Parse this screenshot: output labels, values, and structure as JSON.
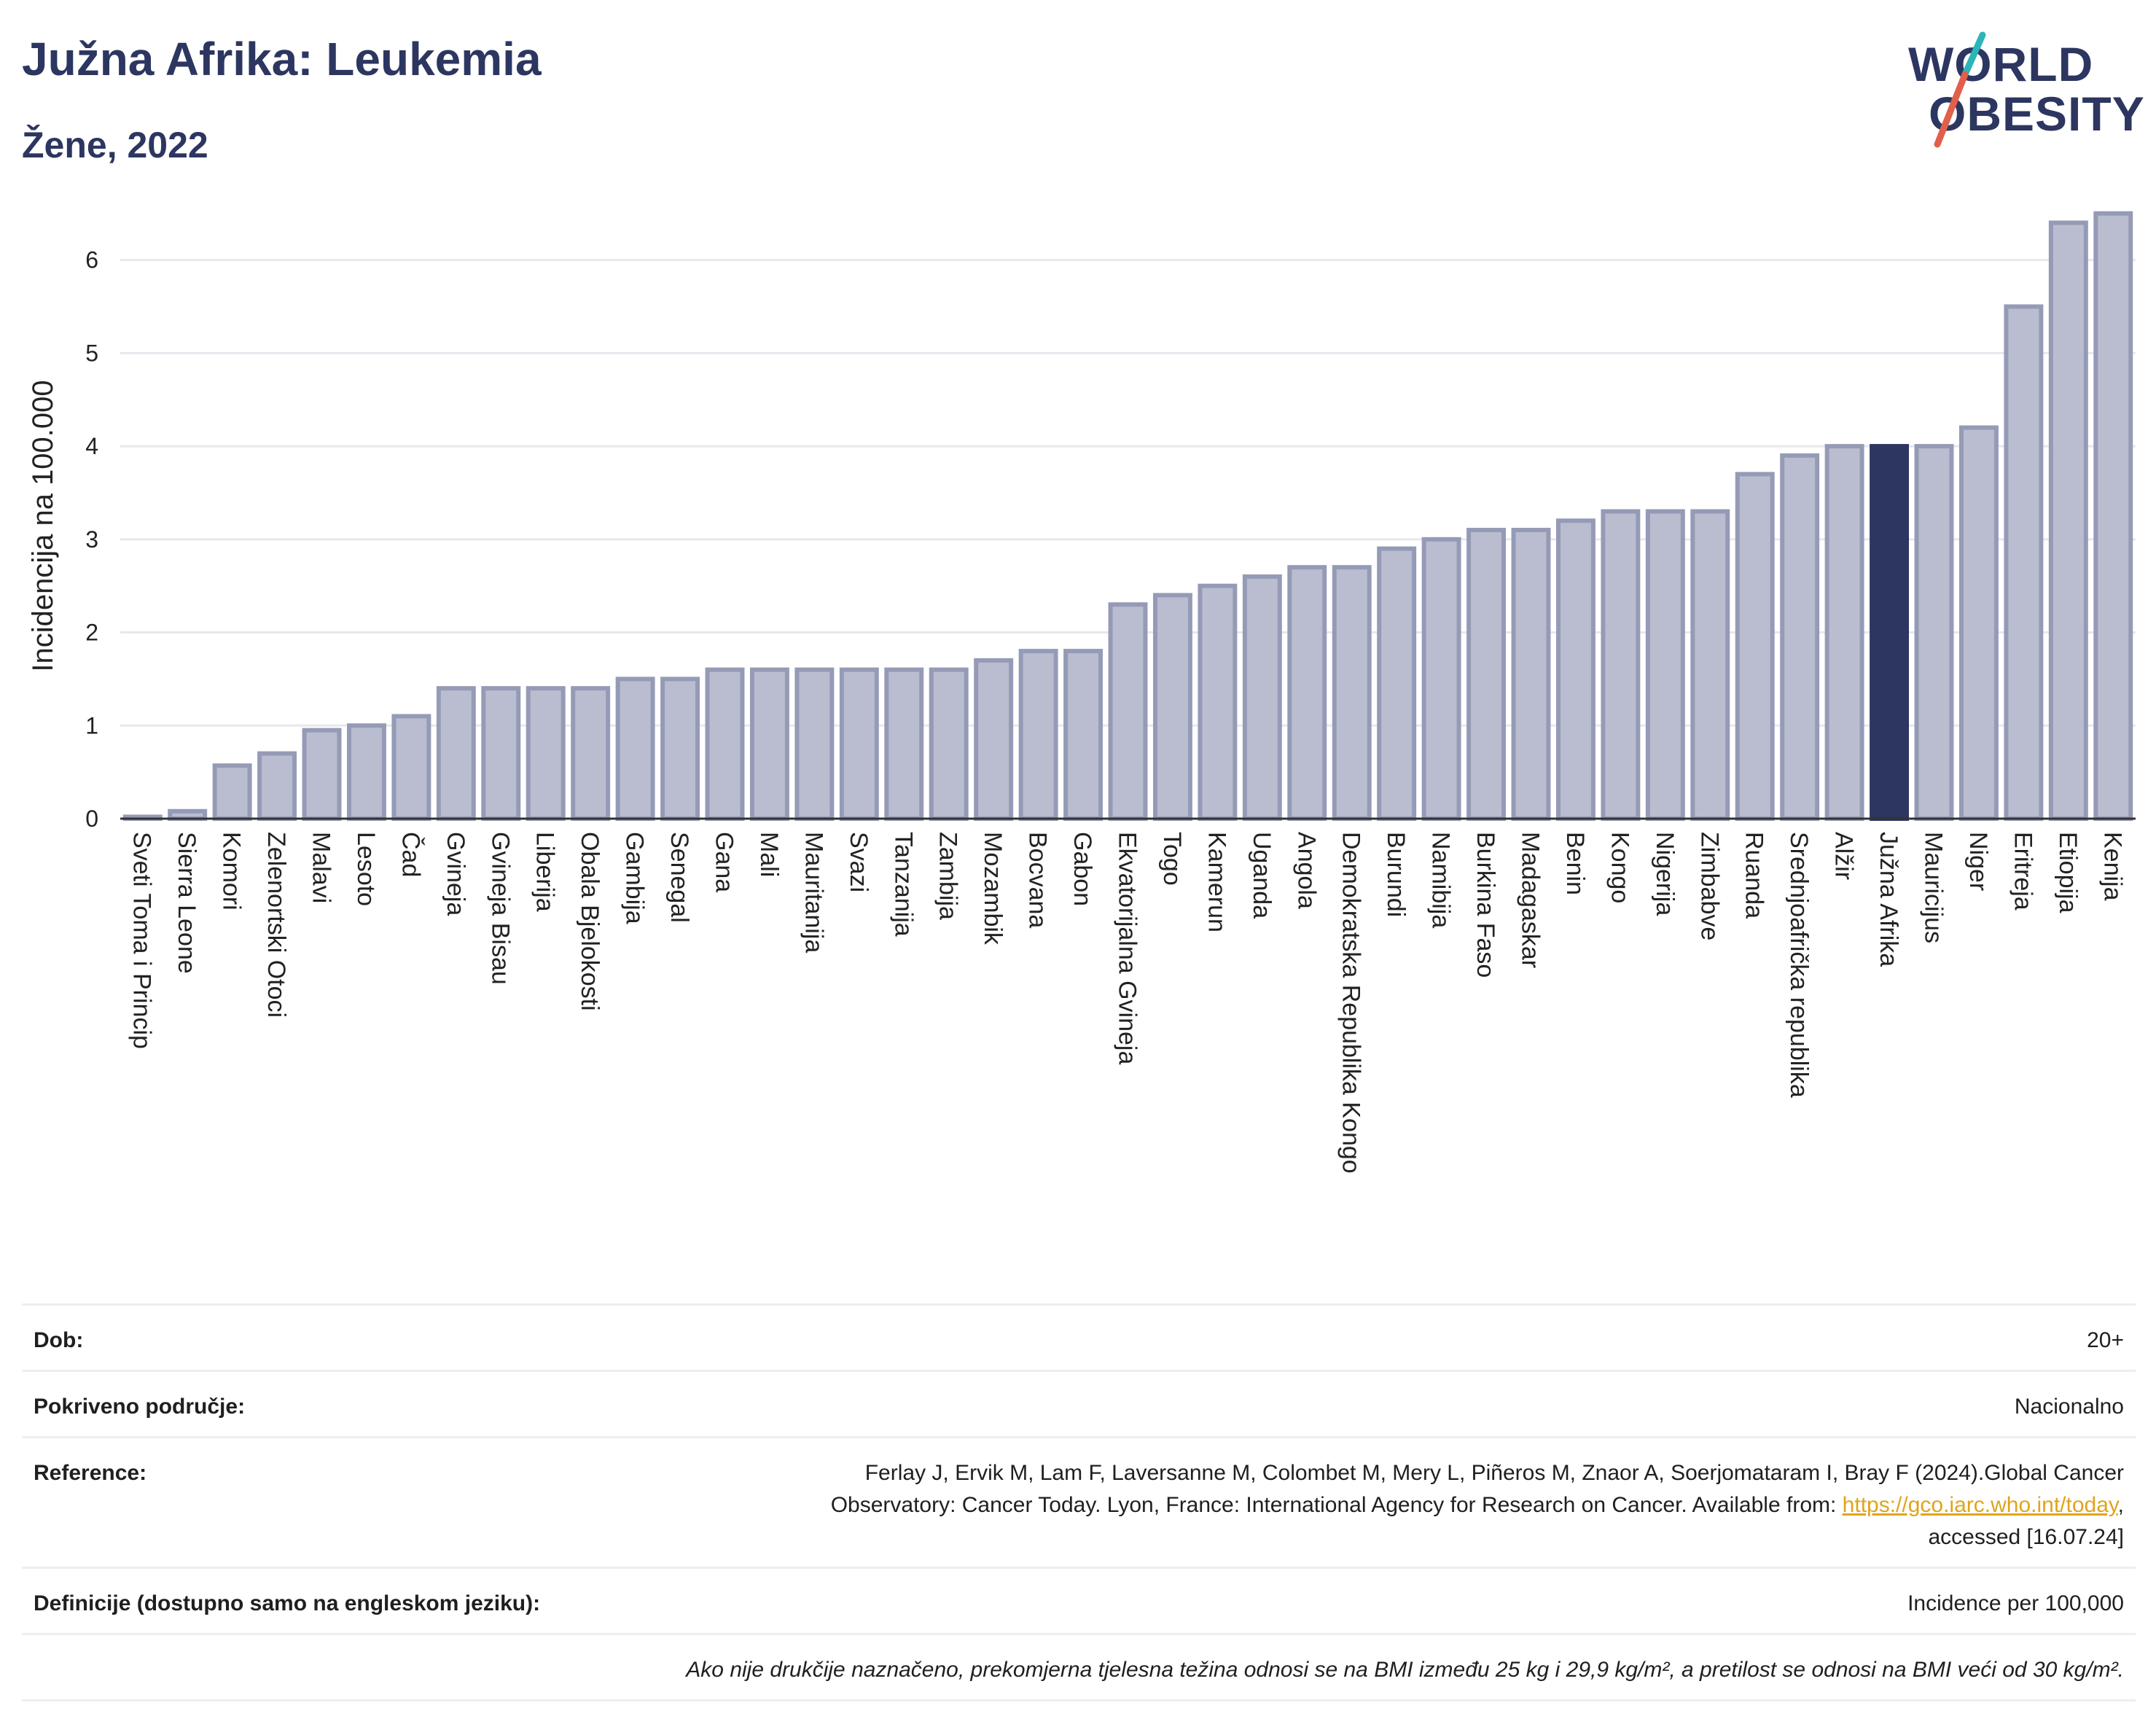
{
  "header": {
    "title": "Južna Afrika: Leukemia",
    "subtitle": "Žene, 2022"
  },
  "logo": {
    "line1": "WORLD",
    "line2": "OBESITY",
    "colors": {
      "text": "#2c3660",
      "slash_top": "#2bb5b8",
      "slash_bottom": "#e0604c"
    }
  },
  "chart_data": {
    "type": "bar",
    "ylabel": "Incidencija na 100.000",
    "ylim": [
      0,
      6.6
    ],
    "yticks": [
      0,
      1,
      2,
      3,
      4,
      5,
      6
    ],
    "grid": true,
    "highlight": "Južna Afrika",
    "colors": {
      "bar": "#b9bdcf",
      "bar_border": "#959bb6",
      "highlight": "#2c3660",
      "grid": "#e6e8ee"
    },
    "categories": [
      "Sveti Toma i Princip",
      "Sierra Leone",
      "Komori",
      "Zelenortski Otoci",
      "Malavi",
      "Lesoto",
      "Čad",
      "Gvineja",
      "Gvineja Bisau",
      "Liberija",
      "Obala Bjelokosti",
      "Gambija",
      "Senegal",
      "Gana",
      "Mali",
      "Mauritanija",
      "Svazi",
      "Tanzanija",
      "Zambija",
      "Mozambik",
      "Bocvana",
      "Gabon",
      "Ekvatorijalna Gvineja",
      "Togo",
      "Kamerun",
      "Uganda",
      "Angola",
      "Demokratska Republika Kongo",
      "Burundi",
      "Namibija",
      "Burkina Faso",
      "Madagaskar",
      "Benin",
      "Kongo",
      "Nigerija",
      "Zimbabve",
      "Ruanda",
      "Srednjoafrička republika",
      "Alžir",
      "Južna Afrika",
      "Mauricijus",
      "Niger",
      "Eritreja",
      "Etiopija",
      "Kenija"
    ],
    "values": [
      0.02,
      0.08,
      0.57,
      0.7,
      0.95,
      1.0,
      1.1,
      1.4,
      1.4,
      1.4,
      1.4,
      1.5,
      1.5,
      1.6,
      1.6,
      1.6,
      1.6,
      1.6,
      1.6,
      1.7,
      1.8,
      1.8,
      2.3,
      2.4,
      2.5,
      2.6,
      2.7,
      2.7,
      2.9,
      3.0,
      3.1,
      3.1,
      3.2,
      3.3,
      3.3,
      3.3,
      3.7,
      3.9,
      4.0,
      4.0,
      4.0,
      4.2,
      5.5,
      6.4,
      6.5
    ]
  },
  "footer": {
    "age_label": "Dob:",
    "age_value": "20+",
    "coverage_label": "Pokriveno područje:",
    "coverage_value": "Nacionalno",
    "reference_label": "Reference:",
    "reference_line1": "Ferlay J, Ervik M, Lam F, Laversanne M, Colombet M, Mery L, Piñeros M, Znaor A, Soerjomataram I, Bray F (2024).Global Cancer",
    "reference_line2": "Observatory: Cancer Today. Lyon, France: International Agency for Research on Cancer. Available from: ",
    "reference_link": "https://gco.iarc.who.int/today",
    "reference_line2_end": ",",
    "reference_line3": "accessed [16.07.24]",
    "definition_label": "Definicije (dostupno samo na engleskom jeziku):",
    "definition_value": "Incidence per 100,000",
    "note": "Ako nije drukčije naznačeno, prekomjerna tjelesna težina odnosi se na BMI između 25 kg i 29,9 kg/m², a pretilost se odnosi na BMI veći od 30 kg/m²."
  }
}
